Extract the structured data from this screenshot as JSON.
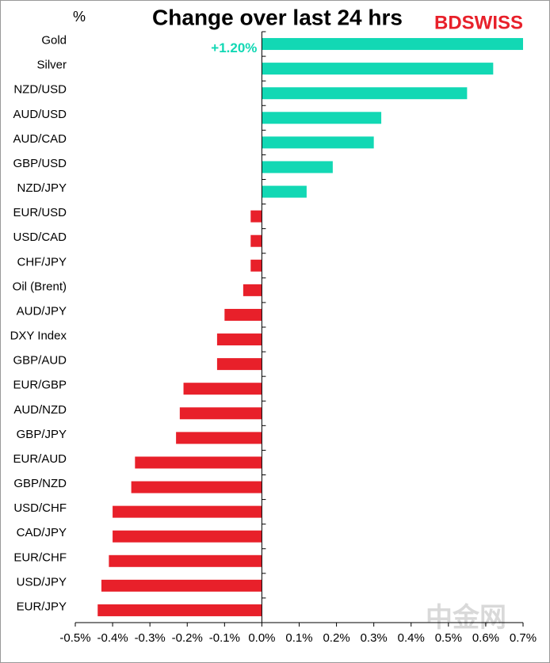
{
  "chart_data": {
    "type": "hbar",
    "title": "Change over last 24 hrs",
    "unit_label": "%",
    "logo": "BDSWISS",
    "watermark": "中金网",
    "categories": [
      "Gold",
      "Silver",
      "NZD/USD",
      "AUD/USD",
      "AUD/CAD",
      "GBP/USD",
      "NZD/JPY",
      "EUR/USD",
      "USD/CAD",
      "CHF/JPY",
      "Oil (Brent)",
      "AUD/JPY",
      "DXY Index",
      "GBP/AUD",
      "EUR/GBP",
      "AUD/NZD",
      "GBP/JPY",
      "EUR/AUD",
      "GBP/NZD",
      "USD/CHF",
      "CAD/JPY",
      "EUR/CHF",
      "USD/JPY",
      "EUR/JPY"
    ],
    "values": [
      1.2,
      0.62,
      0.55,
      0.32,
      0.3,
      0.19,
      0.12,
      -0.03,
      -0.03,
      -0.03,
      -0.05,
      -0.1,
      -0.12,
      -0.12,
      -0.21,
      -0.22,
      -0.23,
      -0.34,
      -0.35,
      -0.4,
      -0.4,
      -0.41,
      -0.43,
      -0.44
    ],
    "value_labels": [
      "+1.20%",
      null,
      null,
      null,
      null,
      null,
      null,
      null,
      null,
      null,
      null,
      null,
      null,
      null,
      null,
      null,
      null,
      null,
      null,
      null,
      null,
      null,
      null,
      null
    ],
    "positive_color": "#12d8b4",
    "negative_color": "#e8202a",
    "xlim": [
      -0.5,
      0.7
    ],
    "xticks": [
      {
        "value": -0.5,
        "label": "-0.5%"
      },
      {
        "value": -0.4,
        "label": "-0.4%"
      },
      {
        "value": -0.3,
        "label": "-0.3%"
      },
      {
        "value": -0.2,
        "label": "-0.2%"
      },
      {
        "value": -0.1,
        "label": "-0.1%"
      },
      {
        "value": 0,
        "label": "0.0%"
      },
      {
        "value": 0.1,
        "label": "0.1%"
      },
      {
        "value": 0.2,
        "label": "0.2%"
      },
      {
        "value": 0.3,
        "label": "0.3%"
      },
      {
        "value": 0.4,
        "label": "0.4%"
      },
      {
        "value": 0.5,
        "label": "0.5%"
      },
      {
        "value": 0.6,
        "label": "0.6%"
      },
      {
        "value": 0.7,
        "label": "0.7%"
      }
    ]
  }
}
